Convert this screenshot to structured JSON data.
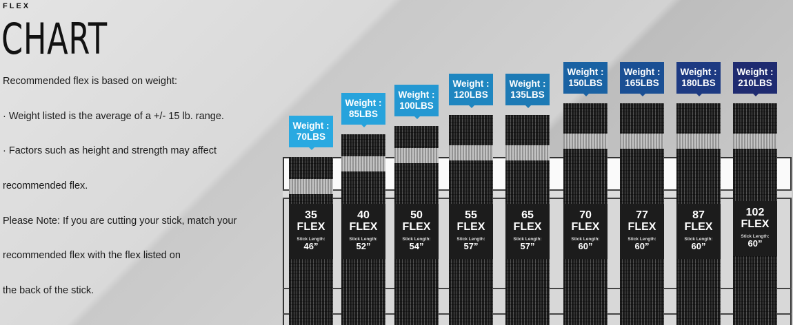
{
  "header": {
    "kicker": "FLEX",
    "title": "CHART"
  },
  "text": [
    "Recommended flex is based on weight:",
    "· Weight listed is the average of a +/- 15 lb. range.",
    "· Factors such as height and strength may affect",
    "recommended flex.",
    "Please Note: If you are cutting your stick, match your",
    "recommended flex with the flex listed on",
    "the back of the stick."
  ],
  "chart_data": {
    "type": "table",
    "weight_prefix": "Weight :",
    "flex_word": "FLEX",
    "stick_length_label": "Stick Length:",
    "rows": [
      {
        "weight": "70LBS",
        "flex": "35",
        "stick_length": "46”",
        "color": "#29a9e1"
      },
      {
        "weight": "85LBS",
        "flex": "40",
        "stick_length": "52”",
        "color": "#27a3dc"
      },
      {
        "weight": "100LBS",
        "flex": "50",
        "stick_length": "54”",
        "color": "#2498d2"
      },
      {
        "weight": "120LBS",
        "flex": "55",
        "stick_length": "57”",
        "color": "#1f86c0"
      },
      {
        "weight": "135LBS",
        "flex": "65",
        "stick_length": "57”",
        "color": "#1d7ab5"
      },
      {
        "weight": "150LBS",
        "flex": "70",
        "stick_length": "60”",
        "color": "#1a62a3"
      },
      {
        "weight": "165LBS",
        "flex": "77",
        "stick_length": "60”",
        "color": "#1a4f94"
      },
      {
        "weight": "180LBS",
        "flex": "87",
        "stick_length": "60”",
        "color": "#1d3a82"
      },
      {
        "weight": "210LBS",
        "flex": "102",
        "stick_length": "60”",
        "color": "#1f2b70"
      }
    ]
  }
}
